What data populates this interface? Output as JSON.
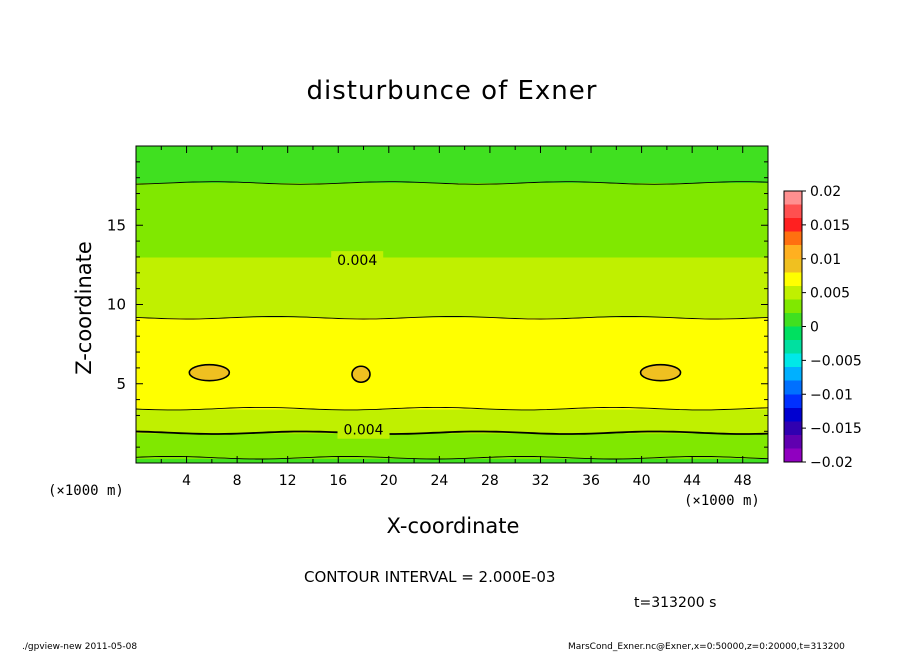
{
  "chart_data": {
    "type": "heatmap",
    "title": "disturbunce of Exner",
    "xlabel": "X-coordinate",
    "ylabel": "Z-coordinate",
    "x_unit": "(×1000 m)",
    "xlim": [
      0,
      50
    ],
    "ylim": [
      0,
      20
    ],
    "x_ticks": [
      4,
      8,
      12,
      16,
      20,
      24,
      28,
      32,
      36,
      40,
      44,
      48
    ],
    "y_ticks": [
      5,
      10,
      15
    ],
    "contour_interval_text": "CONTOUR INTERVAL = 2.000E-03",
    "contour_labels": [
      {
        "text": "0.004",
        "x": 17.5,
        "z": 12.8
      },
      {
        "text": "0.004",
        "x": 18.0,
        "z": 2.1
      }
    ],
    "profile": {
      "z": [
        0,
        1,
        2,
        3,
        4,
        5,
        6,
        7,
        8,
        9,
        10,
        11,
        12,
        13,
        14,
        15,
        16,
        17,
        18,
        19,
        20
      ],
      "value": [
        0.0015,
        0.003,
        0.0041,
        0.0054,
        0.0068,
        0.0076,
        0.0077,
        0.0075,
        0.0067,
        0.0061,
        0.0055,
        0.0049,
        0.0045,
        0.004,
        0.0036,
        0.0031,
        0.0026,
        0.0022,
        0.0019,
        0.0017,
        0.0015
      ]
    },
    "closed_contours": [
      {
        "level": 0.008,
        "x": 5.8,
        "z": 5.7
      },
      {
        "level": 0.008,
        "x": 17.8,
        "z": 5.6
      },
      {
        "level": 0.008,
        "x": 41.5,
        "z": 5.7
      }
    ],
    "colorbar": {
      "ticks": [
        "0.02",
        "0.015",
        "0.01",
        "0.005",
        "0",
        "−0.005",
        "−0.01",
        "−0.015",
        "−0.02"
      ],
      "colors": [
        "#ff9090",
        "#ff5050",
        "#ff2020",
        "#ff7010",
        "#ffb020",
        "#f0c020",
        "#ffff00",
        "#c0f000",
        "#80e800",
        "#40e020",
        "#00e060",
        "#00e0a0",
        "#00e8e8",
        "#00b0ff",
        "#0070ff",
        "#0030ff",
        "#0000d0",
        "#3000b0",
        "#6000b0",
        "#9000c0"
      ]
    }
  },
  "labels": {
    "time": "t=313200 s",
    "footer_left": "./gpview-new  2011-05-08",
    "footer_right": "MarsCond_Exner.nc@Exner,x=0:50000,z=0:20000,t=313200"
  }
}
